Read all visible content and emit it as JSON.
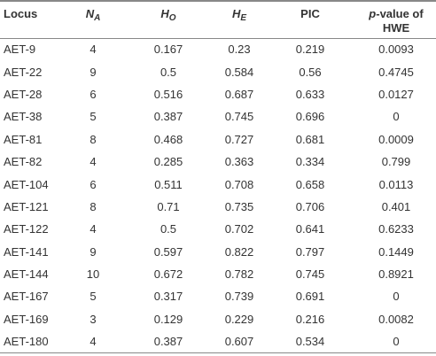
{
  "table": {
    "header": [
      {
        "text": "Locus"
      },
      {
        "text": "N",
        "sub": "A"
      },
      {
        "text": "H",
        "sub": "O"
      },
      {
        "text": "H",
        "sub": "E"
      },
      {
        "text": "PIC"
      },
      {
        "italic": "p",
        "text": "-value of HWE"
      }
    ],
    "rows": [
      [
        "AET-9",
        "4",
        "0.167",
        "0.23",
        "0.219",
        "0.0093"
      ],
      [
        "AET-22",
        "9",
        "0.5",
        "0.584",
        "0.56",
        "0.4745"
      ],
      [
        "AET-28",
        "6",
        "0.516",
        "0.687",
        "0.633",
        "0.0127"
      ],
      [
        "AET-38",
        "5",
        "0.387",
        "0.745",
        "0.696",
        "0"
      ],
      [
        "AET-81",
        "8",
        "0.468",
        "0.727",
        "0.681",
        "0.0009"
      ],
      [
        "AET-82",
        "4",
        "0.285",
        "0.363",
        "0.334",
        "0.799"
      ],
      [
        "AET-104",
        "6",
        "0.511",
        "0.708",
        "0.658",
        "0.0113"
      ],
      [
        "AET-121",
        "8",
        "0.71",
        "0.735",
        "0.706",
        "0.401"
      ],
      [
        "AET-122",
        "4",
        "0.5",
        "0.702",
        "0.641",
        "0.6233"
      ],
      [
        "AET-141",
        "9",
        "0.597",
        "0.822",
        "0.797",
        "0.1449"
      ],
      [
        "AET-144",
        "10",
        "0.672",
        "0.782",
        "0.745",
        "0.8921"
      ],
      [
        "AET-167",
        "5",
        "0.317",
        "0.739",
        "0.691",
        "0"
      ],
      [
        "AET-169",
        "3",
        "0.129",
        "0.229",
        "0.216",
        "0.0082"
      ],
      [
        "AET-180",
        "4",
        "0.387",
        "0.607",
        "0.534",
        "0"
      ]
    ]
  }
}
